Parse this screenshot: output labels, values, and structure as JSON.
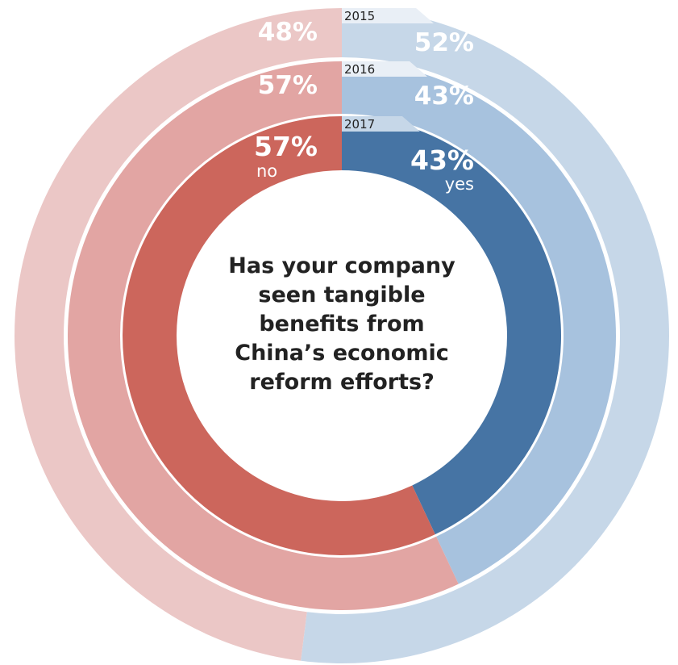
{
  "chart_data": {
    "type": "donut",
    "title": "Has your company seen tangible benefits from China’s economic reform efforts?",
    "title_lines": [
      "Has your company",
      "seen tangible",
      "benefits from",
      "China’s economic",
      "reform efforts?"
    ],
    "categories": [
      "no",
      "yes"
    ],
    "rings": [
      {
        "year": "2015",
        "values": {
          "no": 48,
          "yes": 52
        },
        "labels": {
          "no": "48%",
          "yes": "52%"
        }
      },
      {
        "year": "2016",
        "values": {
          "no": 57,
          "yes": 43
        },
        "labels": {
          "no": "57%",
          "yes": "43%"
        }
      },
      {
        "year": "2017",
        "values": {
          "no": 57,
          "yes": 43
        },
        "labels": {
          "no": "57%",
          "yes": "43%"
        }
      }
    ],
    "category_labels": {
      "no": "no",
      "yes": "yes"
    },
    "colors": {
      "2015": {
        "no": "#ebc7c6",
        "yes": "#c6d7e8"
      },
      "2016": {
        "no": "#e2a5a3",
        "yes": "#a7c2de"
      },
      "2017": {
        "no": "#cc665c",
        "yes": "#4674a4"
      },
      "year_tab": "#e9eff6",
      "year_tab_2017": "#c6d7e8"
    },
    "ring_order": "outer-to-inner",
    "legend": "none"
  }
}
